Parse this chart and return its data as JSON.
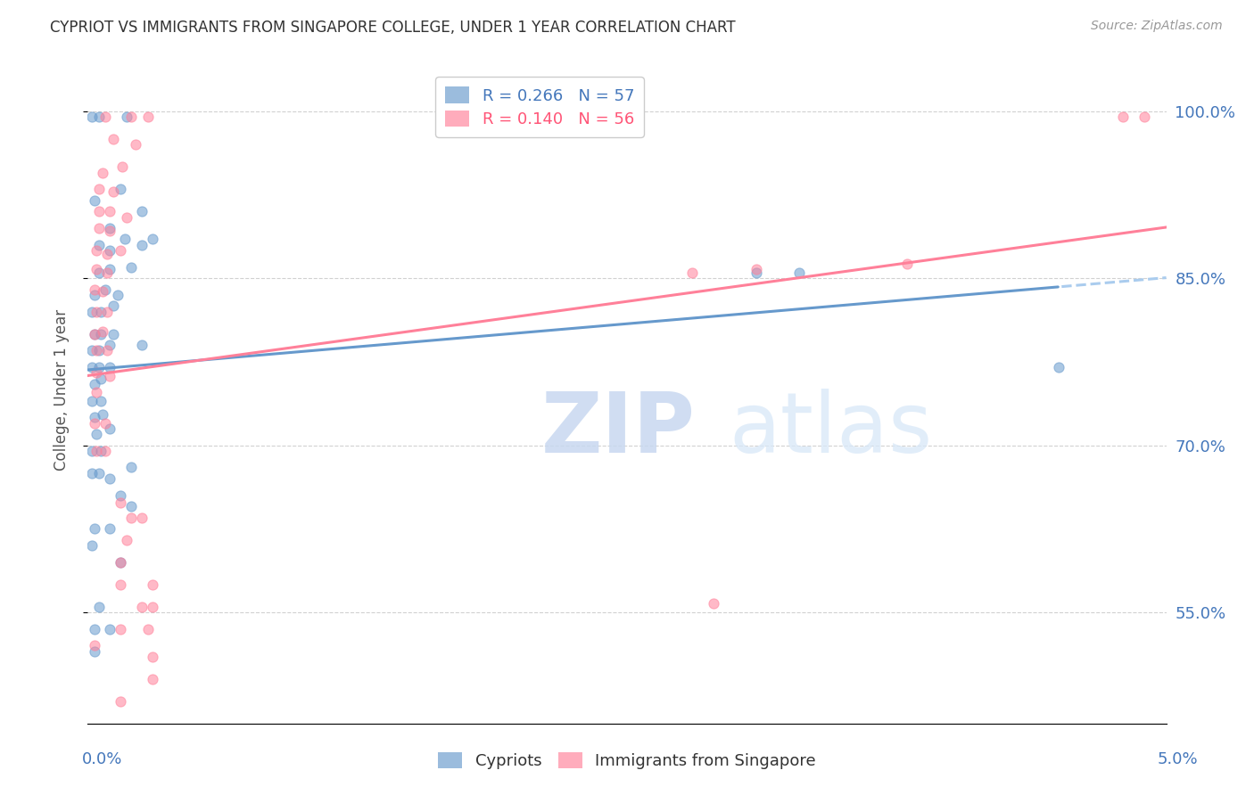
{
  "title": "CYPRIOT VS IMMIGRANTS FROM SINGAPORE COLLEGE, UNDER 1 YEAR CORRELATION CHART",
  "source": "Source: ZipAtlas.com",
  "ylabel": "College, Under 1 year",
  "right_ytick_labels": [
    "55.0%",
    "70.0%",
    "85.0%",
    "100.0%"
  ],
  "right_ytick_values": [
    0.55,
    0.7,
    0.85,
    1.0
  ],
  "xlim": [
    0.0,
    0.05
  ],
  "ylim": [
    0.45,
    1.05
  ],
  "blue_R": 0.266,
  "blue_N": 57,
  "pink_R": 0.14,
  "pink_N": 56,
  "blue_color": "#6699CC",
  "pink_color": "#FF8099",
  "blue_scatter": [
    [
      0.0002,
      0.995
    ],
    [
      0.0005,
      0.995
    ],
    [
      0.0018,
      0.995
    ],
    [
      0.0003,
      0.92
    ],
    [
      0.0015,
      0.93
    ],
    [
      0.0025,
      0.91
    ],
    [
      0.0005,
      0.88
    ],
    [
      0.001,
      0.895
    ],
    [
      0.0017,
      0.885
    ],
    [
      0.001,
      0.875
    ],
    [
      0.0025,
      0.88
    ],
    [
      0.003,
      0.885
    ],
    [
      0.0005,
      0.855
    ],
    [
      0.001,
      0.858
    ],
    [
      0.002,
      0.86
    ],
    [
      0.0003,
      0.835
    ],
    [
      0.0008,
      0.84
    ],
    [
      0.0014,
      0.835
    ],
    [
      0.0002,
      0.82
    ],
    [
      0.0006,
      0.82
    ],
    [
      0.0012,
      0.825
    ],
    [
      0.0003,
      0.8
    ],
    [
      0.0006,
      0.8
    ],
    [
      0.0012,
      0.8
    ],
    [
      0.0002,
      0.785
    ],
    [
      0.0005,
      0.785
    ],
    [
      0.001,
      0.79
    ],
    [
      0.0002,
      0.77
    ],
    [
      0.0005,
      0.77
    ],
    [
      0.001,
      0.77
    ],
    [
      0.0003,
      0.755
    ],
    [
      0.0006,
      0.76
    ],
    [
      0.0002,
      0.74
    ],
    [
      0.0006,
      0.74
    ],
    [
      0.0003,
      0.725
    ],
    [
      0.0007,
      0.728
    ],
    [
      0.0004,
      0.71
    ],
    [
      0.001,
      0.715
    ],
    [
      0.0002,
      0.695
    ],
    [
      0.0006,
      0.695
    ],
    [
      0.0002,
      0.675
    ],
    [
      0.0005,
      0.675
    ],
    [
      0.001,
      0.67
    ],
    [
      0.0015,
      0.655
    ],
    [
      0.002,
      0.645
    ],
    [
      0.0003,
      0.625
    ],
    [
      0.001,
      0.625
    ],
    [
      0.0002,
      0.61
    ],
    [
      0.0015,
      0.595
    ],
    [
      0.0005,
      0.555
    ],
    [
      0.0003,
      0.535
    ],
    [
      0.001,
      0.535
    ],
    [
      0.0003,
      0.515
    ],
    [
      0.002,
      0.68
    ],
    [
      0.0025,
      0.79
    ],
    [
      0.031,
      0.855
    ],
    [
      0.033,
      0.855
    ],
    [
      0.045,
      0.77
    ]
  ],
  "pink_scatter": [
    [
      0.0008,
      0.995
    ],
    [
      0.002,
      0.995
    ],
    [
      0.0028,
      0.995
    ],
    [
      0.0012,
      0.975
    ],
    [
      0.0022,
      0.97
    ],
    [
      0.0007,
      0.945
    ],
    [
      0.0016,
      0.95
    ],
    [
      0.0005,
      0.93
    ],
    [
      0.0012,
      0.928
    ],
    [
      0.0005,
      0.91
    ],
    [
      0.001,
      0.91
    ],
    [
      0.0018,
      0.905
    ],
    [
      0.0005,
      0.895
    ],
    [
      0.001,
      0.893
    ],
    [
      0.0004,
      0.875
    ],
    [
      0.0009,
      0.872
    ],
    [
      0.0015,
      0.875
    ],
    [
      0.0004,
      0.858
    ],
    [
      0.0009,
      0.855
    ],
    [
      0.0003,
      0.84
    ],
    [
      0.0007,
      0.838
    ],
    [
      0.0004,
      0.82
    ],
    [
      0.0009,
      0.82
    ],
    [
      0.0003,
      0.8
    ],
    [
      0.0007,
      0.802
    ],
    [
      0.0004,
      0.785
    ],
    [
      0.0009,
      0.785
    ],
    [
      0.0004,
      0.765
    ],
    [
      0.001,
      0.762
    ],
    [
      0.0004,
      0.748
    ],
    [
      0.0003,
      0.72
    ],
    [
      0.0008,
      0.72
    ],
    [
      0.0004,
      0.695
    ],
    [
      0.0008,
      0.695
    ],
    [
      0.0015,
      0.648
    ],
    [
      0.002,
      0.635
    ],
    [
      0.0025,
      0.635
    ],
    [
      0.0018,
      0.615
    ],
    [
      0.0015,
      0.595
    ],
    [
      0.0015,
      0.575
    ],
    [
      0.003,
      0.575
    ],
    [
      0.0025,
      0.555
    ],
    [
      0.003,
      0.555
    ],
    [
      0.0015,
      0.535
    ],
    [
      0.0028,
      0.535
    ],
    [
      0.0003,
      0.52
    ],
    [
      0.003,
      0.51
    ],
    [
      0.003,
      0.49
    ],
    [
      0.0015,
      0.47
    ],
    [
      0.031,
      0.858
    ],
    [
      0.028,
      0.855
    ],
    [
      0.038,
      0.863
    ],
    [
      0.029,
      0.558
    ],
    [
      0.048,
      0.995
    ],
    [
      0.049,
      0.995
    ]
  ],
  "watermark_zip": "ZIP",
  "watermark_atlas": "atlas",
  "dashed_line_color": "#AACCEE",
  "label_color": "#4477BB",
  "grid_color": "#CCCCCC",
  "title_color": "#333333",
  "source_color": "#999999",
  "ylabel_color": "#555555"
}
